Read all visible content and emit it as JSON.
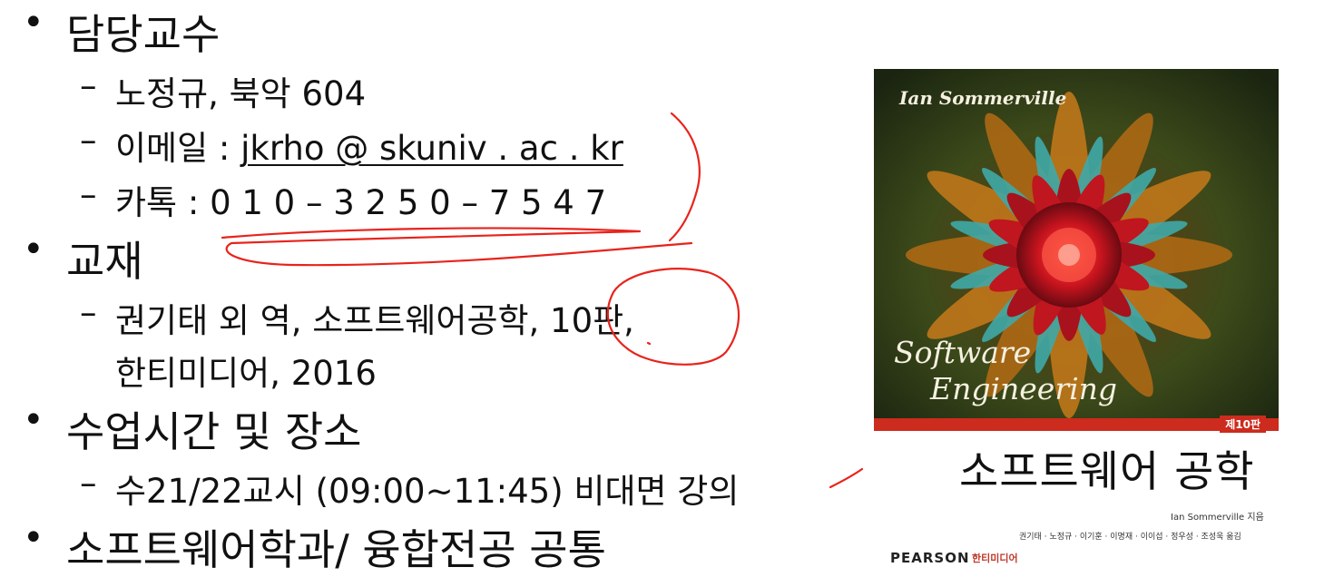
{
  "sections": [
    {
      "title": "담당교수",
      "items": [
        {
          "text": "노정규, 북악 604"
        },
        {
          "prefix": "이메일 : ",
          "link": "jkrho @ skuniv . ac . kr"
        },
        {
          "text": "카톡 : 0 1 0 – 3 2 5 0 – 7 5 4 7"
        }
      ]
    },
    {
      "title": "교재",
      "items": [
        {
          "text": "권기태 외 역, 소프트웨어공학, 10판,",
          "cont": "한티미디어, 2016"
        }
      ]
    },
    {
      "title": "수업시간 및 장소",
      "items": [
        {
          "text": "수21/22교시 (09:00~11:45) 비대면 강의"
        }
      ]
    },
    {
      "title": "소프트웨어학과/ 융합전공 공통",
      "items": []
    }
  ],
  "bullet_glyph": "•",
  "dash_glyph": "–",
  "book": {
    "cover_author": "Ian Sommerville",
    "cover_title_line1": "Software",
    "cover_title_line2": "Engineering",
    "edition": "제10판",
    "korean_title": "소프트웨어 공학",
    "author_credit": "Ian Sommerville 지음",
    "translators": "권기태 · 노정규 · 이기훈 · 이명재 · 이이섭 · 정우성 · 조성욱 옮김",
    "publisher": "PEARSON",
    "imprint": "한티미디어"
  },
  "colors": {
    "annotation": "#e8231c",
    "text": "#111111"
  }
}
